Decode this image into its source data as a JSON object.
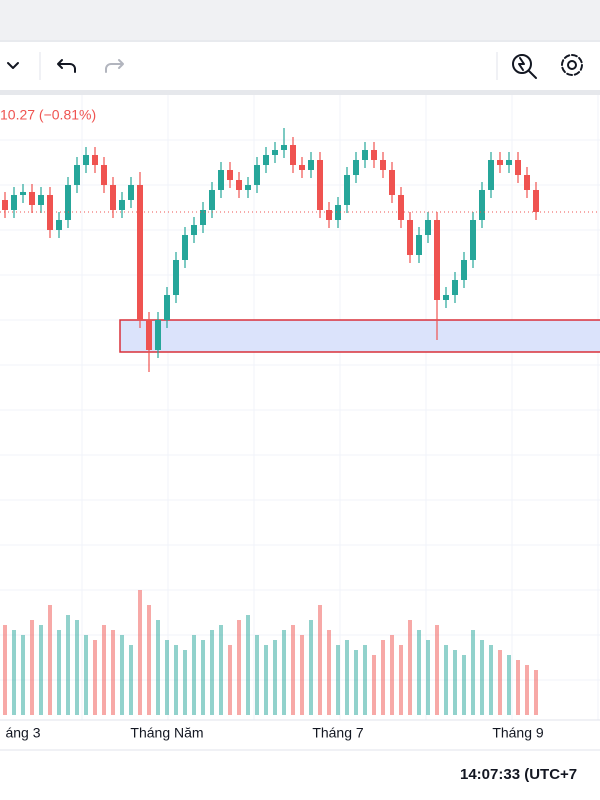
{
  "chart_data": {
    "type": "candlestick",
    "price_change": "10.27 (−0.81%)",
    "up_color": "#26a69a",
    "down_color": "#ef5350",
    "ylim": [
      0,
      300
    ],
    "volume_lim": [
      0,
      200
    ],
    "categories": [
      null,
      null,
      "áng 3",
      null,
      null,
      null,
      null,
      null,
      null,
      null,
      null,
      null,
      null,
      null,
      null,
      null,
      null,
      null,
      "Tháng Năm",
      null,
      null,
      null,
      null,
      null,
      null,
      null,
      null,
      null,
      null,
      null,
      null,
      null,
      null,
      null,
      null,
      null,
      null,
      "Tháng 7",
      null,
      null,
      null,
      null,
      null,
      null,
      null,
      null,
      null,
      null,
      null,
      null,
      null,
      null,
      null,
      null,
      null,
      null,
      null,
      "Tháng 9",
      null,
      null
    ],
    "open": [
      200,
      190,
      205,
      208,
      195,
      205,
      170,
      180,
      215,
      235,
      245,
      235,
      215,
      190,
      200,
      215,
      80,
      50,
      80,
      105,
      140,
      165,
      175,
      190,
      210,
      230,
      220,
      210,
      215,
      235,
      245,
      250,
      255,
      235,
      230,
      240,
      190,
      180,
      195,
      225,
      240,
      250,
      240,
      230,
      205,
      180,
      145,
      165,
      180,
      100,
      105,
      120,
      140,
      180,
      210,
      240,
      235,
      240,
      225,
      210
    ],
    "high": [
      208,
      213,
      216,
      216,
      213,
      213,
      188,
      223,
      243,
      253,
      253,
      243,
      223,
      208,
      223,
      228,
      88,
      88,
      113,
      148,
      173,
      183,
      198,
      218,
      238,
      238,
      228,
      223,
      243,
      253,
      258,
      272,
      263,
      243,
      248,
      248,
      198,
      203,
      233,
      248,
      258,
      258,
      248,
      238,
      213,
      188,
      173,
      188,
      188,
      113,
      128,
      148,
      188,
      218,
      248,
      248,
      248,
      248,
      233,
      218
    ],
    "low": [
      182,
      182,
      197,
      187,
      187,
      162,
      162,
      172,
      207,
      227,
      227,
      207,
      182,
      182,
      192,
      72,
      28,
      42,
      72,
      97,
      132,
      157,
      167,
      182,
      202,
      212,
      202,
      202,
      207,
      227,
      237,
      242,
      227,
      222,
      222,
      182,
      172,
      172,
      187,
      217,
      232,
      232,
      222,
      197,
      172,
      137,
      137,
      157,
      60,
      92,
      97,
      112,
      132,
      172,
      202,
      227,
      227,
      217,
      202,
      180
    ],
    "close": [
      190,
      205,
      208,
      195,
      205,
      170,
      180,
      215,
      235,
      245,
      235,
      215,
      190,
      200,
      215,
      80,
      50,
      80,
      105,
      140,
      165,
      175,
      190,
      210,
      230,
      220,
      210,
      215,
      235,
      245,
      250,
      255,
      235,
      230,
      240,
      190,
      180,
      195,
      225,
      240,
      250,
      240,
      230,
      205,
      180,
      145,
      165,
      180,
      100,
      105,
      120,
      140,
      180,
      210,
      240,
      235,
      240,
      225,
      210,
      188
    ],
    "volume": [
      90,
      85,
      80,
      95,
      90,
      110,
      85,
      100,
      95,
      80,
      75,
      90,
      85,
      80,
      70,
      125,
      110,
      95,
      75,
      70,
      65,
      80,
      75,
      85,
      90,
      70,
      95,
      100,
      80,
      70,
      75,
      85,
      90,
      80,
      95,
      110,
      85,
      70,
      75,
      65,
      70,
      60,
      75,
      80,
      70,
      95,
      85,
      75,
      90,
      70,
      65,
      60,
      85,
      75,
      70,
      65,
      60,
      55,
      50,
      45
    ],
    "zone": {
      "low": 48,
      "high": 80,
      "start": 13,
      "color": "#dbe3fb",
      "border": "#d9303a"
    }
  },
  "status_bar": {
    "time": "14:07:33 (UTC+7"
  }
}
